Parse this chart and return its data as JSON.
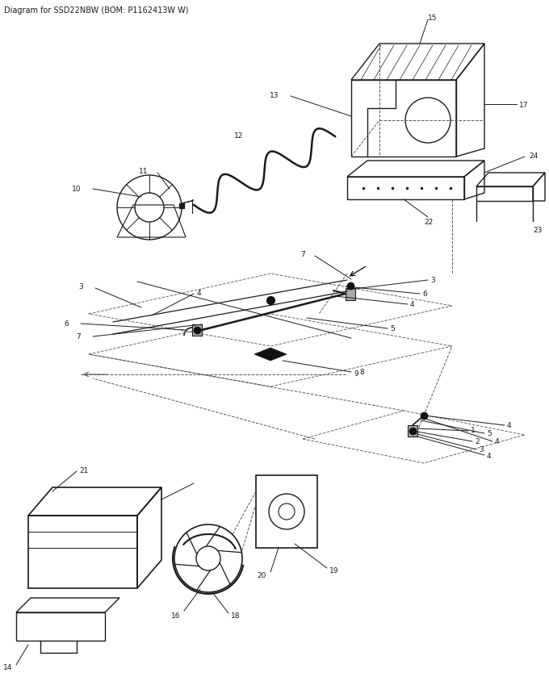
{
  "title": "Diagram for SSD22NBW (BOM: P1162413W W)",
  "bg_color": "#ffffff",
  "lc": "#1a1a1a",
  "fig_width": 6.8,
  "fig_height": 8.45,
  "dpi": 100
}
